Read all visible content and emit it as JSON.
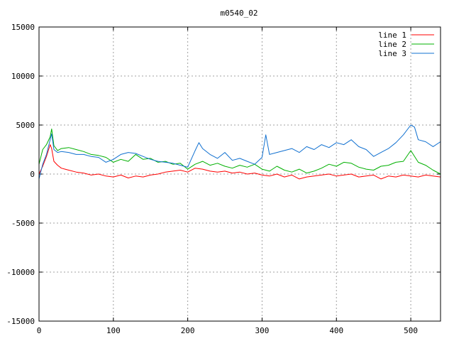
{
  "chart_data": {
    "type": "line",
    "title": "m0540_02",
    "xlabel": "",
    "ylabel": "",
    "xlim": [
      0,
      540
    ],
    "ylim": [
      -15000,
      15000
    ],
    "xticks": [
      0,
      100,
      200,
      300,
      400,
      500
    ],
    "yticks": [
      -15000,
      -10000,
      -5000,
      0,
      5000,
      10000,
      15000
    ],
    "grid": true,
    "legend_position": "top-right",
    "series": [
      {
        "name": "line 1",
        "color": "#ff0000",
        "x": [
          0,
          5,
          10,
          15,
          17,
          20,
          25,
          30,
          35,
          40,
          50,
          60,
          70,
          80,
          90,
          100,
          110,
          120,
          130,
          140,
          150,
          160,
          170,
          180,
          190,
          200,
          210,
          220,
          230,
          240,
          250,
          260,
          270,
          280,
          290,
          300,
          310,
          320,
          330,
          340,
          350,
          360,
          370,
          380,
          390,
          400,
          410,
          420,
          430,
          440,
          450,
          460,
          470,
          480,
          490,
          500,
          510,
          520,
          530,
          540
        ],
        "y": [
          0,
          800,
          1800,
          3000,
          2600,
          1300,
          900,
          600,
          500,
          400,
          200,
          100,
          -100,
          0,
          -200,
          -300,
          -100,
          -400,
          -200,
          -300,
          -100,
          0,
          200,
          300,
          400,
          200,
          600,
          500,
          300,
          200,
          300,
          100,
          200,
          0,
          100,
          -100,
          -200,
          0,
          -300,
          -100,
          -500,
          -300,
          -200,
          -100,
          0,
          -200,
          -100,
          0,
          -300,
          -200,
          -100,
          -500,
          -200,
          -300,
          -100,
          -200,
          -300,
          -100,
          -200,
          -300
        ]
      },
      {
        "name": "line 2",
        "color": "#00b000",
        "x": [
          0,
          5,
          10,
          15,
          17,
          20,
          25,
          30,
          40,
          50,
          60,
          70,
          80,
          90,
          100,
          110,
          120,
          130,
          140,
          150,
          160,
          170,
          180,
          190,
          200,
          210,
          220,
          230,
          240,
          250,
          260,
          270,
          280,
          290,
          300,
          310,
          320,
          330,
          340,
          350,
          360,
          370,
          380,
          390,
          400,
          410,
          420,
          430,
          440,
          450,
          460,
          470,
          480,
          490,
          500,
          510,
          520,
          530,
          540
        ],
        "y": [
          1000,
          2500,
          3000,
          3800,
          4600,
          2900,
          2400,
          2600,
          2700,
          2500,
          2300,
          2000,
          1900,
          1700,
          1200,
          1500,
          1300,
          2000,
          1500,
          1600,
          1200,
          1300,
          1000,
          1100,
          500,
          1000,
          1300,
          900,
          1100,
          800,
          600,
          900,
          700,
          1000,
          500,
          300,
          800,
          400,
          200,
          500,
          100,
          300,
          600,
          1000,
          800,
          1200,
          1100,
          700,
          500,
          400,
          800,
          900,
          1200,
          1300,
          2400,
          1200,
          900,
          400,
          0
        ]
      },
      {
        "name": "line 3",
        "color": "#1070d0",
        "x": [
          0,
          5,
          10,
          15,
          17,
          20,
          25,
          30,
          40,
          50,
          60,
          70,
          80,
          90,
          100,
          110,
          120,
          130,
          140,
          150,
          160,
          170,
          180,
          190,
          200,
          210,
          215,
          220,
          230,
          240,
          250,
          260,
          270,
          280,
          290,
          300,
          305,
          310,
          320,
          330,
          340,
          350,
          360,
          370,
          380,
          390,
          400,
          410,
          420,
          430,
          440,
          450,
          460,
          470,
          480,
          490,
          500,
          505,
          510,
          520,
          530,
          540
        ],
        "y": [
          -500,
          1000,
          2000,
          3500,
          4100,
          2500,
          2200,
          2300,
          2200,
          2000,
          2000,
          1800,
          1700,
          1200,
          1500,
          2000,
          2200,
          2100,
          1800,
          1500,
          1300,
          1200,
          1100,
          900,
          700,
          2400,
          3200,
          2600,
          2000,
          1600,
          2200,
          1400,
          1600,
          1300,
          1000,
          1700,
          4000,
          2000,
          2200,
          2400,
          2600,
          2200,
          2800,
          2500,
          3000,
          2700,
          3200,
          3000,
          3500,
          2800,
          2500,
          1800,
          2200,
          2600,
          3200,
          4000,
          5000,
          4800,
          3500,
          3300,
          2800,
          3300
        ]
      }
    ]
  }
}
